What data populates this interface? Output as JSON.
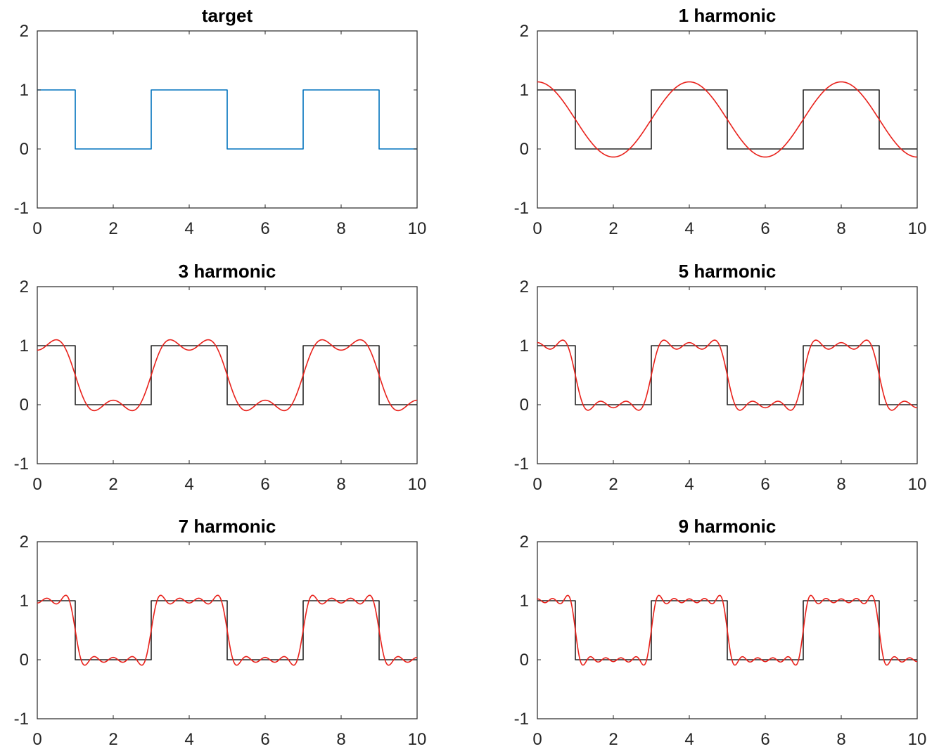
{
  "figure": {
    "rows": 2,
    "cols": 3
  },
  "chart_data": [
    {
      "type": "line",
      "title": "target",
      "xlim": [
        0,
        10
      ],
      "ylim": [
        -1,
        2
      ],
      "xticks": [
        "0",
        "2",
        "4",
        "6",
        "8",
        "10"
      ],
      "yticks": [
        "-1",
        "0",
        "1",
        "2"
      ],
      "grid": false,
      "legend": "none",
      "series": [
        {
          "kind": "square",
          "period": 4,
          "high": 1,
          "low": 0,
          "x": [
            0,
            1,
            1,
            3,
            3,
            5,
            5,
            7,
            7,
            9,
            9,
            10
          ],
          "y": [
            1,
            1,
            0,
            0,
            1,
            1,
            0,
            0,
            1,
            1,
            0,
            0
          ],
          "color": "#0072BD"
        }
      ]
    },
    {
      "type": "line",
      "title": "1 harmonic",
      "xlim": [
        0,
        10
      ],
      "ylim": [
        -1,
        2
      ],
      "xticks": [
        "0",
        "2",
        "4",
        "6",
        "8",
        "10"
      ],
      "yticks": [
        "-1",
        "0",
        "1",
        "2"
      ],
      "grid": false,
      "legend": "none",
      "series": [
        {
          "kind": "square",
          "x": [
            0,
            1,
            1,
            3,
            3,
            5,
            5,
            7,
            7,
            9,
            9,
            10
          ],
          "y": [
            1,
            1,
            0,
            0,
            1,
            1,
            0,
            0,
            1,
            1,
            0,
            0
          ],
          "color": "#262626"
        },
        {
          "kind": "fourier",
          "harmonics": 1,
          "period": 4,
          "color": "#E8211B"
        }
      ]
    },
    {
      "type": "line",
      "title": "3 harmonic",
      "xlim": [
        0,
        10
      ],
      "ylim": [
        -1,
        2
      ],
      "xticks": [
        "0",
        "2",
        "4",
        "6",
        "8",
        "10"
      ],
      "yticks": [
        "-1",
        "0",
        "1",
        "2"
      ],
      "grid": false,
      "legend": "none",
      "series": [
        {
          "kind": "square",
          "x": [
            0,
            1,
            1,
            3,
            3,
            5,
            5,
            7,
            7,
            9,
            9,
            10
          ],
          "y": [
            1,
            1,
            0,
            0,
            1,
            1,
            0,
            0,
            1,
            1,
            0,
            0
          ],
          "color": "#262626"
        },
        {
          "kind": "fourier",
          "harmonics": 3,
          "period": 4,
          "color": "#E8211B"
        }
      ]
    },
    {
      "type": "line",
      "title": "5 harmonic",
      "xlim": [
        0,
        10
      ],
      "ylim": [
        -1,
        2
      ],
      "xticks": [
        "0",
        "2",
        "4",
        "6",
        "8",
        "10"
      ],
      "yticks": [
        "-1",
        "0",
        "1",
        "2"
      ],
      "grid": false,
      "legend": "none",
      "series": [
        {
          "kind": "square",
          "x": [
            0,
            1,
            1,
            3,
            3,
            5,
            5,
            7,
            7,
            9,
            9,
            10
          ],
          "y": [
            1,
            1,
            0,
            0,
            1,
            1,
            0,
            0,
            1,
            1,
            0,
            0
          ],
          "color": "#262626"
        },
        {
          "kind": "fourier",
          "harmonics": 5,
          "period": 4,
          "color": "#E8211B"
        }
      ]
    },
    {
      "type": "line",
      "title": "7 harmonic",
      "xlim": [
        0,
        10
      ],
      "ylim": [
        -1,
        2
      ],
      "xticks": [
        "0",
        "2",
        "4",
        "6",
        "8",
        "10"
      ],
      "yticks": [
        "-1",
        "0",
        "1",
        "2"
      ],
      "grid": false,
      "legend": "none",
      "series": [
        {
          "kind": "square",
          "x": [
            0,
            1,
            1,
            3,
            3,
            5,
            5,
            7,
            7,
            9,
            9,
            10
          ],
          "y": [
            1,
            1,
            0,
            0,
            1,
            1,
            0,
            0,
            1,
            1,
            0,
            0
          ],
          "color": "#262626"
        },
        {
          "kind": "fourier",
          "harmonics": 7,
          "period": 4,
          "color": "#E8211B"
        }
      ]
    },
    {
      "type": "line",
      "title": "9 harmonic",
      "xlim": [
        0,
        10
      ],
      "ylim": [
        -1,
        2
      ],
      "xticks": [
        "0",
        "2",
        "4",
        "6",
        "8",
        "10"
      ],
      "yticks": [
        "-1",
        "0",
        "1",
        "2"
      ],
      "grid": false,
      "legend": "none",
      "series": [
        {
          "kind": "square",
          "x": [
            0,
            1,
            1,
            3,
            3,
            5,
            5,
            7,
            7,
            9,
            9,
            10
          ],
          "y": [
            1,
            1,
            0,
            0,
            1,
            1,
            0,
            0,
            1,
            1,
            0,
            0
          ],
          "color": "#262626"
        },
        {
          "kind": "fourier",
          "harmonics": 9,
          "period": 4,
          "color": "#E8211B"
        }
      ]
    }
  ]
}
